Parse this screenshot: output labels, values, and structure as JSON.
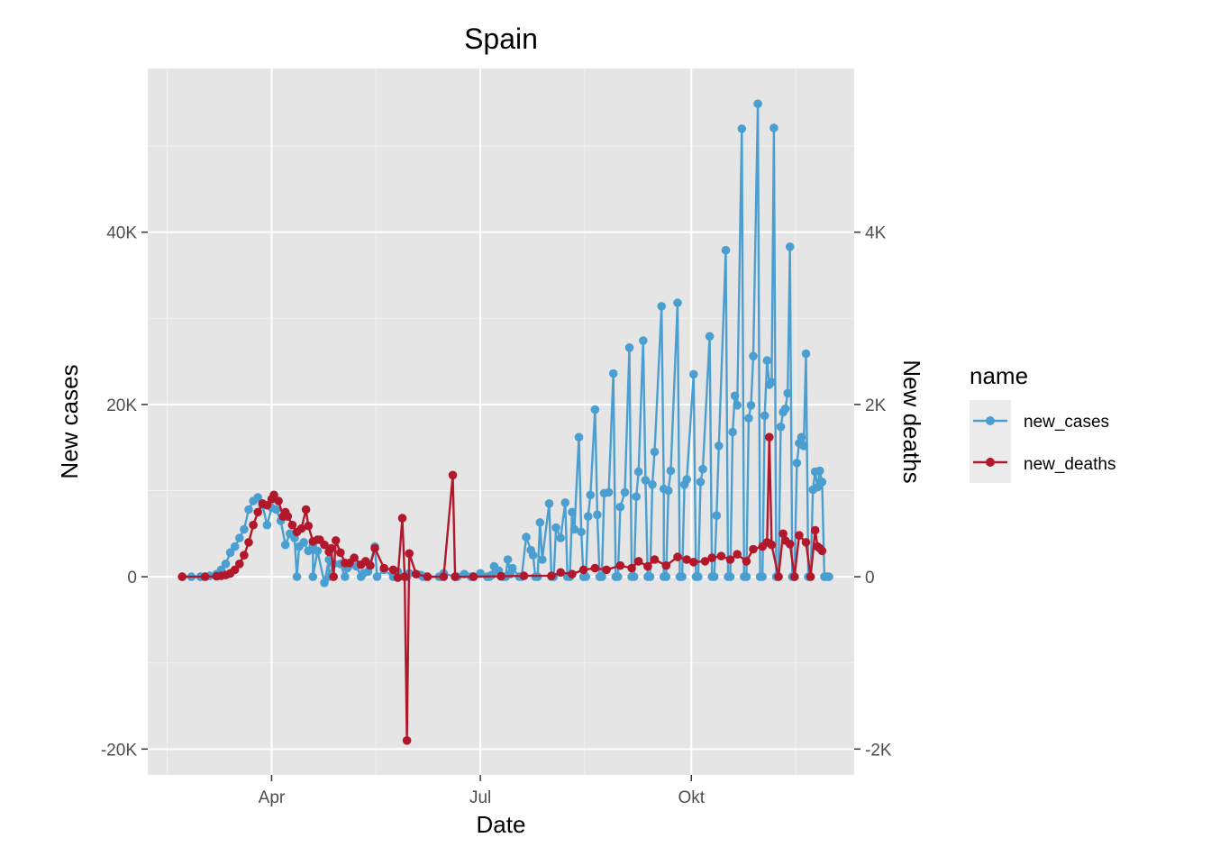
{
  "chart_data": {
    "type": "line",
    "title": "Spain",
    "xlabel": "Date",
    "ylabel": "New cases",
    "y2label": "New deaths",
    "x_ticks": [
      {
        "date": "2020-04-01",
        "label": "Apr"
      },
      {
        "date": "2020-07-01",
        "label": "Jul"
      },
      {
        "date": "2020-10-01",
        "label": "Okt"
      }
    ],
    "xlim": [
      "2020-02-07",
      "2020-12-11"
    ],
    "ylim": [
      -23000,
      59000
    ],
    "y2lim": [
      -2300,
      5900
    ],
    "y_ticks": [
      {
        "value": -20000,
        "label": "-20K"
      },
      {
        "value": 0,
        "label": "0"
      },
      {
        "value": 20000,
        "label": "20K"
      },
      {
        "value": 40000,
        "label": "40K"
      }
    ],
    "y2_ticks": [
      {
        "value": -2000,
        "label": "-2K"
      },
      {
        "value": 0,
        "label": "0"
      },
      {
        "value": 2000,
        "label": "2K"
      },
      {
        "value": 4000,
        "label": "4K"
      }
    ],
    "grid": true,
    "legend": {
      "title": "name",
      "position": "right"
    },
    "series": [
      {
        "name": "new_cases",
        "axis": "left",
        "color": "#4B9FD0",
        "points": [
          [
            "2020-02-22",
            0
          ],
          [
            "2020-02-26",
            0
          ],
          [
            "2020-03-01",
            0
          ],
          [
            "2020-03-05",
            100
          ],
          [
            "2020-03-08",
            300
          ],
          [
            "2020-03-10",
            800
          ],
          [
            "2020-03-12",
            1500
          ],
          [
            "2020-03-14",
            2800
          ],
          [
            "2020-03-16",
            3500
          ],
          [
            "2020-03-18",
            4500
          ],
          [
            "2020-03-20",
            5500
          ],
          [
            "2020-03-22",
            7800
          ],
          [
            "2020-03-24",
            8800
          ],
          [
            "2020-03-26",
            9200
          ],
          [
            "2020-03-28",
            8300
          ],
          [
            "2020-03-30",
            6000
          ],
          [
            "2020-04-01",
            8000
          ],
          [
            "2020-04-03",
            7800
          ],
          [
            "2020-04-05",
            6500
          ],
          [
            "2020-04-07",
            3700
          ],
          [
            "2020-04-09",
            5000
          ],
          [
            "2020-04-11",
            4500
          ],
          [
            "2020-04-13",
            3500
          ],
          [
            "2020-04-15",
            4000
          ],
          [
            "2020-04-17",
            3000
          ],
          [
            "2020-04-19",
            3600
          ],
          [
            "2020-04-21",
            3000
          ],
          [
            "2020-04-24",
            -700
          ],
          [
            "2020-04-26",
            2000
          ],
          [
            "2020-04-28",
            1500
          ],
          [
            "2020-05-01",
            1500
          ],
          [
            "2020-05-04",
            1000
          ],
          [
            "2020-05-08",
            1200
          ],
          [
            "2020-05-11",
            400
          ],
          [
            "2020-05-13",
            600
          ],
          [
            "2020-05-16",
            3500
          ],
          [
            "2020-05-20",
            800
          ],
          [
            "2020-05-26",
            600
          ],
          [
            "2020-05-31",
            400
          ],
          [
            "2020-06-05",
            200
          ],
          [
            "2020-06-15",
            400
          ],
          [
            "2020-06-24",
            300
          ],
          [
            "2020-07-01",
            400
          ],
          [
            "2020-07-06",
            200
          ],
          [
            "2020-07-07",
            1200
          ],
          [
            "2020-07-09",
            700
          ],
          [
            "2020-07-13",
            2000
          ],
          [
            "2020-07-14",
            300
          ],
          [
            "2020-07-15",
            1000
          ],
          [
            "2020-07-21",
            4600
          ],
          [
            "2020-07-23",
            3100
          ],
          [
            "2020-07-24",
            2500
          ],
          [
            "2020-07-27",
            6300
          ],
          [
            "2020-07-28",
            2000
          ],
          [
            "2020-07-31",
            8500
          ],
          [
            "2020-08-03",
            5700
          ],
          [
            "2020-08-05",
            4500
          ],
          [
            "2020-08-07",
            8600
          ],
          [
            "2020-08-10",
            7500
          ],
          [
            "2020-08-11",
            5500
          ],
          [
            "2020-08-13",
            16200
          ],
          [
            "2020-08-14",
            5200
          ],
          [
            "2020-08-17",
            7000
          ],
          [
            "2020-08-18",
            9500
          ],
          [
            "2020-08-20",
            19400
          ],
          [
            "2020-08-21",
            7200
          ],
          [
            "2020-08-24",
            9700
          ],
          [
            "2020-08-26",
            9800
          ],
          [
            "2020-08-28",
            23600
          ],
          [
            "2020-08-31",
            8100
          ],
          [
            "2020-09-02",
            9800
          ],
          [
            "2020-09-04",
            26600
          ],
          [
            "2020-09-07",
            9300
          ],
          [
            "2020-09-08",
            12200
          ],
          [
            "2020-09-10",
            27400
          ],
          [
            "2020-09-11",
            11200
          ],
          [
            "2020-09-14",
            10700
          ],
          [
            "2020-09-15",
            14500
          ],
          [
            "2020-09-18",
            31400
          ],
          [
            "2020-09-19",
            10200
          ],
          [
            "2020-09-21",
            10000
          ],
          [
            "2020-09-22",
            12300
          ],
          [
            "2020-09-25",
            31800
          ],
          [
            "2020-09-28",
            10700
          ],
          [
            "2020-09-29",
            11300
          ],
          [
            "2020-10-02",
            23500
          ],
          [
            "2020-10-05",
            11000
          ],
          [
            "2020-10-06",
            12500
          ],
          [
            "2020-10-09",
            27900
          ],
          [
            "2020-10-12",
            7100
          ],
          [
            "2020-10-13",
            15200
          ],
          [
            "2020-10-16",
            37900
          ],
          [
            "2020-10-19",
            16800
          ],
          [
            "2020-10-20",
            21000
          ],
          [
            "2020-10-21",
            19900
          ],
          [
            "2020-10-23",
            52000
          ],
          [
            "2020-10-26",
            18400
          ],
          [
            "2020-10-27",
            19900
          ],
          [
            "2020-10-28",
            25600
          ],
          [
            "2020-10-30",
            54900
          ],
          [
            "2020-11-02",
            18700
          ],
          [
            "2020-11-03",
            25100
          ],
          [
            "2020-11-04",
            22300
          ],
          [
            "2020-11-05",
            22600
          ],
          [
            "2020-11-06",
            52100
          ],
          [
            "2020-11-09",
            17400
          ],
          [
            "2020-11-10",
            19100
          ],
          [
            "2020-11-11",
            19500
          ],
          [
            "2020-11-12",
            21300
          ],
          [
            "2020-11-13",
            38300
          ],
          [
            "2020-11-16",
            13200
          ],
          [
            "2020-11-17",
            15500
          ],
          [
            "2020-11-18",
            16200
          ],
          [
            "2020-11-19",
            15200
          ],
          [
            "2020-11-20",
            25900
          ],
          [
            "2020-11-23",
            10100
          ],
          [
            "2020-11-24",
            12200
          ],
          [
            "2020-11-25",
            10400
          ],
          [
            "2020-11-26",
            12300
          ],
          [
            "2020-11-27",
            11000
          ]
        ],
        "zero_dates": [
          "2020-04-12",
          "2020-04-19",
          "2020-04-26",
          "2020-05-03",
          "2020-05-10",
          "2020-05-17",
          "2020-05-24",
          "2020-05-30",
          "2020-06-06",
          "2020-06-07",
          "2020-06-13",
          "2020-06-14",
          "2020-06-20",
          "2020-06-21",
          "2020-06-27",
          "2020-06-28",
          "2020-07-04",
          "2020-07-05",
          "2020-07-11",
          "2020-07-12",
          "2020-07-18",
          "2020-07-19",
          "2020-07-25",
          "2020-07-26",
          "2020-08-01",
          "2020-08-02",
          "2020-08-08",
          "2020-08-09",
          "2020-08-15",
          "2020-08-16",
          "2020-08-22",
          "2020-08-23",
          "2020-08-29",
          "2020-08-30",
          "2020-09-05",
          "2020-09-06",
          "2020-09-12",
          "2020-09-13",
          "2020-09-19",
          "2020-09-20",
          "2020-09-26",
          "2020-09-27",
          "2020-10-03",
          "2020-10-04",
          "2020-10-10",
          "2020-10-11",
          "2020-10-17",
          "2020-10-18",
          "2020-10-24",
          "2020-10-25",
          "2020-10-31",
          "2020-11-01",
          "2020-11-07",
          "2020-11-08",
          "2020-11-14",
          "2020-11-15",
          "2020-11-21",
          "2020-11-22",
          "2020-11-28",
          "2020-11-29",
          "2020-11-30"
        ]
      },
      {
        "name": "new_deaths",
        "axis": "right",
        "color": "#B2182B",
        "points": [
          [
            "2020-02-22",
            0
          ],
          [
            "2020-03-03",
            0
          ],
          [
            "2020-03-08",
            5
          ],
          [
            "2020-03-10",
            10
          ],
          [
            "2020-03-12",
            20
          ],
          [
            "2020-03-14",
            40
          ],
          [
            "2020-03-16",
            80
          ],
          [
            "2020-03-18",
            150
          ],
          [
            "2020-03-20",
            250
          ],
          [
            "2020-03-22",
            400
          ],
          [
            "2020-03-24",
            600
          ],
          [
            "2020-03-26",
            750
          ],
          [
            "2020-03-28",
            850
          ],
          [
            "2020-03-30",
            830
          ],
          [
            "2020-04-01",
            900
          ],
          [
            "2020-04-02",
            950
          ],
          [
            "2020-04-04",
            880
          ],
          [
            "2020-04-06",
            700
          ],
          [
            "2020-04-07",
            750
          ],
          [
            "2020-04-08",
            700
          ],
          [
            "2020-04-10",
            600
          ],
          [
            "2020-04-12",
            520
          ],
          [
            "2020-04-14",
            560
          ],
          [
            "2020-04-16",
            780
          ],
          [
            "2020-04-17",
            590
          ],
          [
            "2020-04-19",
            410
          ],
          [
            "2020-04-21",
            430
          ],
          [
            "2020-04-22",
            430
          ],
          [
            "2020-04-24",
            370
          ],
          [
            "2020-04-26",
            290
          ],
          [
            "2020-04-27",
            330
          ],
          [
            "2020-04-28",
            0
          ],
          [
            "2020-04-29",
            420
          ],
          [
            "2020-05-01",
            280
          ],
          [
            "2020-05-03",
            160
          ],
          [
            "2020-05-05",
            160
          ],
          [
            "2020-05-07",
            220
          ],
          [
            "2020-05-10",
            140
          ],
          [
            "2020-05-12",
            180
          ],
          [
            "2020-05-14",
            130
          ],
          [
            "2020-05-16",
            330
          ],
          [
            "2020-05-20",
            100
          ],
          [
            "2020-05-24",
            80
          ],
          [
            "2020-05-26",
            -10
          ],
          [
            "2020-05-28",
            680
          ],
          [
            "2020-05-29",
            0
          ],
          [
            "2020-05-30",
            -1900
          ],
          [
            "2020-05-31",
            270
          ],
          [
            "2020-06-03",
            30
          ],
          [
            "2020-06-08",
            0
          ],
          [
            "2020-06-15",
            0
          ],
          [
            "2020-06-19",
            1180
          ],
          [
            "2020-06-20",
            0
          ],
          [
            "2020-06-28",
            0
          ],
          [
            "2020-07-10",
            5
          ],
          [
            "2020-07-20",
            10
          ],
          [
            "2020-08-01",
            10
          ],
          [
            "2020-08-05",
            50
          ],
          [
            "2020-08-10",
            30
          ],
          [
            "2020-08-15",
            80
          ],
          [
            "2020-08-20",
            100
          ],
          [
            "2020-08-25",
            80
          ],
          [
            "2020-08-31",
            130
          ],
          [
            "2020-09-05",
            100
          ],
          [
            "2020-09-08",
            180
          ],
          [
            "2020-09-12",
            120
          ],
          [
            "2020-09-15",
            200
          ],
          [
            "2020-09-20",
            130
          ],
          [
            "2020-09-25",
            230
          ],
          [
            "2020-09-29",
            200
          ],
          [
            "2020-10-02",
            170
          ],
          [
            "2020-10-07",
            180
          ],
          [
            "2020-10-10",
            220
          ],
          [
            "2020-10-14",
            240
          ],
          [
            "2020-10-18",
            200
          ],
          [
            "2020-10-21",
            260
          ],
          [
            "2020-10-25",
            180
          ],
          [
            "2020-10-28",
            320
          ],
          [
            "2020-11-01",
            350
          ],
          [
            "2020-11-03",
            400
          ],
          [
            "2020-11-04",
            1620
          ],
          [
            "2020-11-05",
            370
          ],
          [
            "2020-11-08",
            0
          ],
          [
            "2020-11-10",
            500
          ],
          [
            "2020-11-11",
            420
          ],
          [
            "2020-11-13",
            380
          ],
          [
            "2020-11-15",
            0
          ],
          [
            "2020-11-17",
            480
          ],
          [
            "2020-11-20",
            400
          ],
          [
            "2020-11-22",
            0
          ],
          [
            "2020-11-24",
            540
          ],
          [
            "2020-11-25",
            350
          ],
          [
            "2020-11-26",
            330
          ],
          [
            "2020-11-27",
            300
          ]
        ]
      }
    ]
  }
}
